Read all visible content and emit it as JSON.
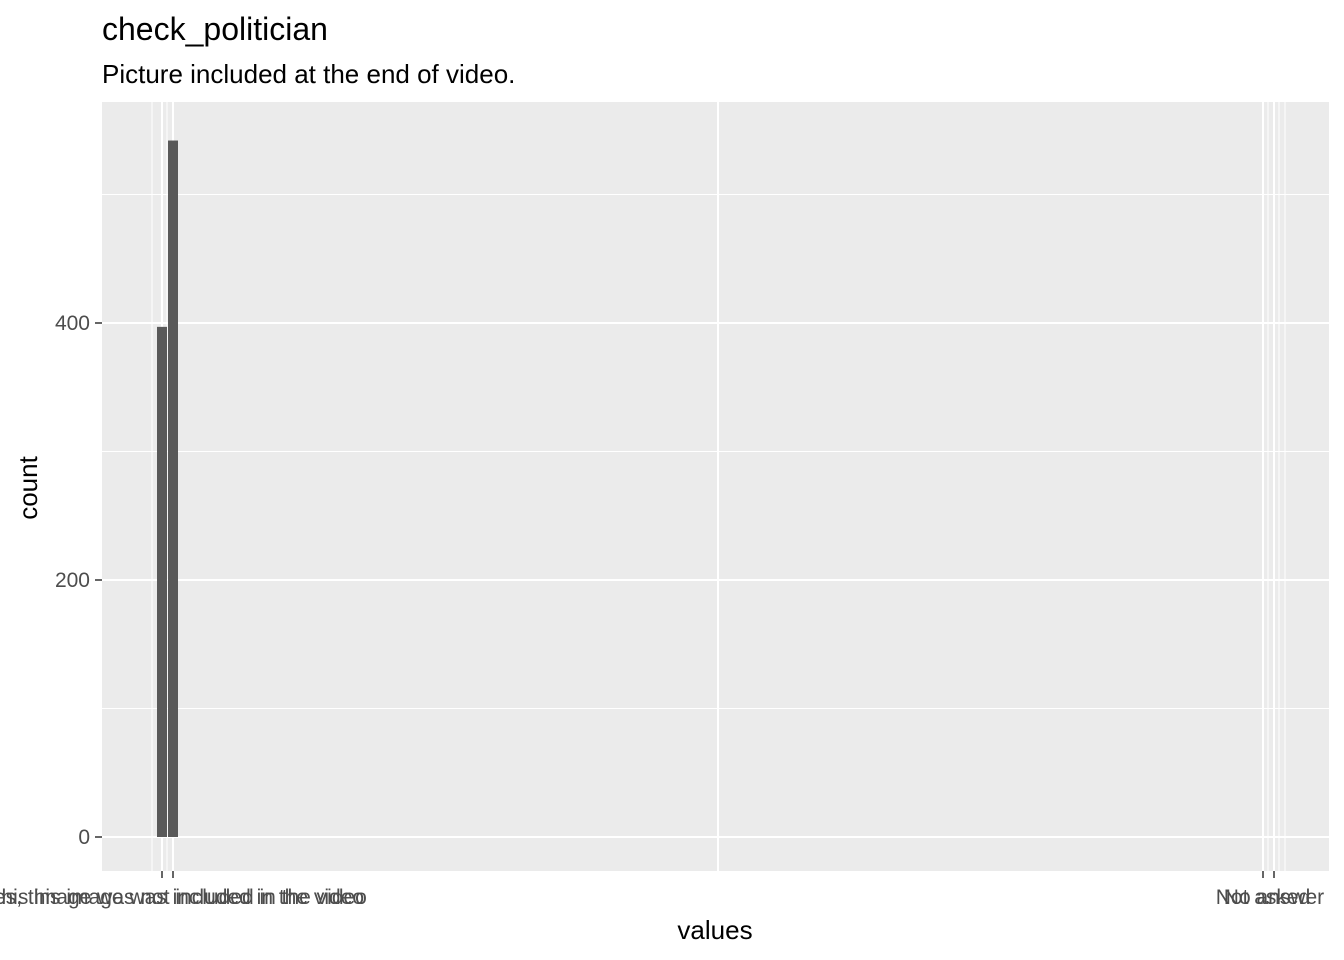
{
  "chart_data": {
    "type": "bar",
    "title": "check_politician",
    "subtitle": "Picture included at the end of video.",
    "xlabel": "values",
    "ylabel": "count",
    "categories": [
      "No, this image was not included in the video",
      "Yes, this image was included in the video",
      "Not asked",
      "No answer"
    ],
    "values": [
      397,
      542,
      0,
      0
    ],
    "ylim": [
      0,
      560
    ],
    "yticks": [
      0,
      200,
      400
    ],
    "bar_color": "#595959",
    "panel_color": "#ebebeb",
    "grid": true,
    "legend": "none"
  }
}
